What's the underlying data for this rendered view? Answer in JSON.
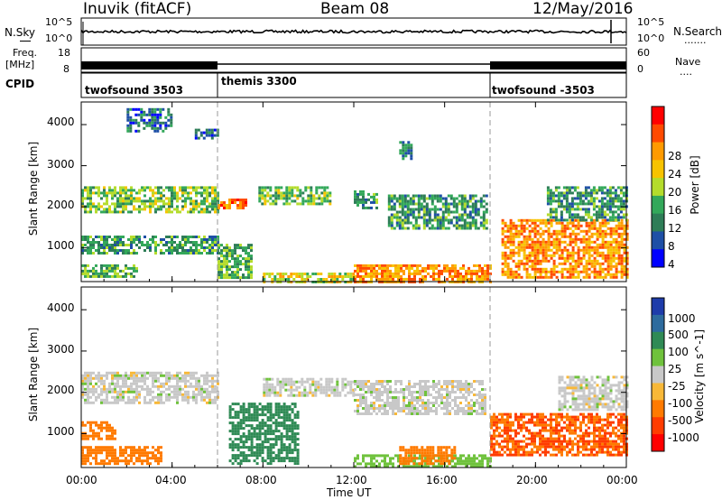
{
  "header": {
    "station": "Inuvik (fitACF)",
    "beam": "Beam 08",
    "date": "12/May/2016"
  },
  "noise_panel": {
    "left_label": "N.Sky",
    "right_label": "N.Search",
    "right_marker": ".......",
    "left_ticks": [
      "10^5",
      "10^0"
    ],
    "right_ticks": [
      "10^5",
      "10^0"
    ]
  },
  "freq_panel": {
    "left_label_line1": "Freq.",
    "left_label_line2": "[MHz]",
    "right_label": "Nave",
    "right_marker": "....",
    "left_ticks": [
      "18",
      "8"
    ],
    "right_ticks": [
      "60",
      "0"
    ]
  },
  "cpid_panel": {
    "label": "CPID",
    "segments": [
      {
        "name": "twofsound 3503",
        "start_hour": 0
      },
      {
        "name": "themis 3300",
        "start_hour": 6
      },
      {
        "name": "twofsound -3503",
        "start_hour": 18
      }
    ]
  },
  "power_colorbar": {
    "title": "Power [dB]",
    "ticks": [
      "28",
      "24",
      "20",
      "16",
      "12",
      "8",
      "4"
    ],
    "colors": [
      "#ff0000",
      "#ff4a00",
      "#ff9a00",
      "#f7c300",
      "#b4dc2c",
      "#33a85a",
      "#2e7d57",
      "#1e4fa6",
      "#0000ff"
    ]
  },
  "velocity_colorbar": {
    "title": "Velocity [m s^-1]",
    "ticks": [
      "1000",
      "500",
      "100",
      "25",
      "-25",
      "-100",
      "-500",
      "-1000"
    ],
    "colors": [
      "#1e3caa",
      "#2d6b9e",
      "#2f8a55",
      "#6fc23c",
      "#c8c8c8",
      "#f8b838",
      "#ff7a00",
      "#ff3c00",
      "#ff0000"
    ]
  },
  "y_axis": {
    "label": "Slant Range [km]",
    "ticks": [
      "4000",
      "3000",
      "2000",
      "1000"
    ]
  },
  "x_axis": {
    "label": "Time UT",
    "ticks": [
      "00:00",
      "04:00",
      "08:00",
      "12:00",
      "16:00",
      "20:00",
      "00:00"
    ]
  },
  "chart_data": [
    {
      "type": "heatmap",
      "title": "Power",
      "xlabel": "Time UT",
      "ylabel": "Slant Range [km]",
      "xlim_hours": [
        0,
        24
      ],
      "ylim_km": [
        180,
        4550
      ],
      "colorbar": "Power [dB]",
      "colorbar_range_db": [
        0,
        32
      ],
      "regions": [
        {
          "t0": 0.0,
          "t1": 6.0,
          "r0": 1900,
          "r1": 2500,
          "db": 14
        },
        {
          "t0": 0.0,
          "t1": 6.0,
          "r0": 850,
          "r1": 1300,
          "db": 10
        },
        {
          "t0": 0.0,
          "t1": 2.4,
          "r0": 300,
          "r1": 600,
          "db": 12
        },
        {
          "t0": 2.0,
          "t1": 4.0,
          "r0": 3850,
          "r1": 4400,
          "db": 6
        },
        {
          "t0": 5.0,
          "t1": 6.0,
          "r0": 3700,
          "r1": 3900,
          "db": 6
        },
        {
          "t0": 6.0,
          "t1": 7.2,
          "r0": 1950,
          "r1": 2200,
          "db": 26
        },
        {
          "t0": 6.0,
          "t1": 7.5,
          "r0": 300,
          "r1": 1100,
          "db": 12
        },
        {
          "t0": 7.8,
          "t1": 11.0,
          "r0": 2050,
          "r1": 2500,
          "db": 14
        },
        {
          "t0": 8.0,
          "t1": 12.0,
          "r0": 200,
          "r1": 400,
          "db": 18
        },
        {
          "t0": 12.0,
          "t1": 13.0,
          "r0": 1950,
          "r1": 2400,
          "db": 10
        },
        {
          "t0": 14.0,
          "t1": 14.5,
          "r0": 3150,
          "r1": 3600,
          "db": 8
        },
        {
          "t0": 13.5,
          "t1": 17.8,
          "r0": 1500,
          "r1": 2300,
          "db": 10
        },
        {
          "t0": 12.0,
          "t1": 18.0,
          "r0": 200,
          "r1": 600,
          "db": 24
        },
        {
          "t0": 18.5,
          "t1": 24.0,
          "r0": 300,
          "r1": 1700,
          "db": 24
        },
        {
          "t0": 20.5,
          "t1": 24.0,
          "r0": 1700,
          "r1": 2500,
          "db": 10
        }
      ]
    },
    {
      "type": "heatmap",
      "title": "Velocity",
      "xlabel": "Time UT",
      "ylabel": "Slant Range [km]",
      "xlim_hours": [
        0,
        24
      ],
      "ylim_km": [
        180,
        4550
      ],
      "colorbar": "Velocity [m s^-1]",
      "regions": [
        {
          "t0": 0.0,
          "t1": 6.0,
          "r0": 1750,
          "r1": 2500,
          "v": 0
        },
        {
          "t0": 0.0,
          "t1": 1.5,
          "r0": 900,
          "r1": 1300,
          "v": -300
        },
        {
          "t0": 0.0,
          "t1": 3.5,
          "r0": 300,
          "r1": 700,
          "v": -150
        },
        {
          "t0": 6.5,
          "t1": 9.5,
          "r0": 250,
          "r1": 1750,
          "v": 150
        },
        {
          "t0": 8.0,
          "t1": 12.0,
          "r0": 1950,
          "r1": 2350,
          "v": 0
        },
        {
          "t0": 12.0,
          "t1": 17.8,
          "r0": 1500,
          "r1": 2300,
          "v": 0
        },
        {
          "t0": 12.0,
          "t1": 18.0,
          "r0": 200,
          "r1": 500,
          "v": 60
        },
        {
          "t0": 14.0,
          "t1": 16.5,
          "r0": 300,
          "r1": 700,
          "v": -300
        },
        {
          "t0": 18.0,
          "t1": 24.0,
          "r0": 500,
          "r1": 1500,
          "v": -500
        },
        {
          "t0": 21.0,
          "t1": 24.0,
          "r0": 1600,
          "r1": 2400,
          "v": 0
        }
      ]
    }
  ]
}
